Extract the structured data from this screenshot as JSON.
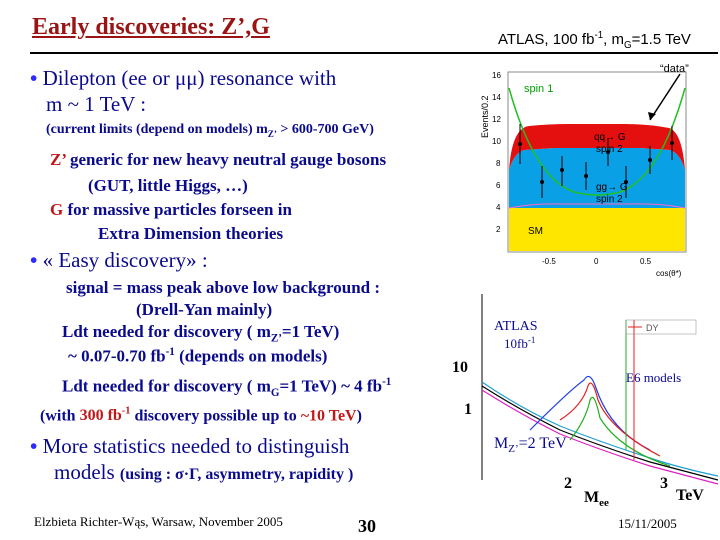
{
  "slide": {
    "title": "Early discoveries: Z’,G",
    "atlas_header": "ATLAS, 100 fb-1, mG=1.5 TeV",
    "bullets": [
      {
        "line1": "Dilepton (ee or μμ) resonance with",
        "line2": "m ~ 1 TeV :"
      },
      {
        "text": "« Easy discovery» :"
      },
      {
        "line1": "More statistics needed to  distinguish",
        "line2": "models (using : σ·Γ, asymmetry, rapidity )"
      }
    ],
    "current_limits": "(current limits (depend on models) mZ’ > 600-700 GeV)",
    "zprime_desc": [
      "Z’ generic for new heavy neutral gauge bosons",
      "(GUT,  little Higgs, …)"
    ],
    "g_desc": [
      "G  for massive particles forseen in",
      "Extra Dimension theories"
    ],
    "signal": [
      "signal = mass peak above low background :",
      "(Drell-Yan mainly)"
    ],
    "ldt_z": [
      "Ldt needed for discovery ( mZ’=1 TeV)",
      "~ 0.07-0.70 fb-1 (depends on models)"
    ],
    "ldt_g": "Ldt needed for discovery ( mG=1 TeV) ~ 4 fb-1",
    "with_300": {
      "prefix": "(with ",
      "highlight": "300 fb-1",
      "mid": " discovery possible up to ",
      "highlight2": "~10 TeV",
      "suffix": ")"
    },
    "footer": {
      "author": "Elzbieta Richter-Wąs, Warsaw, November 2005",
      "page": "30",
      "date": "15/11/2005"
    }
  },
  "top_plot": {
    "ylabel": "Events/0.2",
    "xlabel": "cos(θ*)",
    "yticks": [
      "16",
      "14",
      "12",
      "10",
      "8",
      "6",
      "4",
      "2"
    ],
    "xticks": [
      "-0.5",
      "0",
      "0.5"
    ],
    "labels": {
      "data": "“data”",
      "spin1": "spin 1",
      "qq": "qq→ G spin 2",
      "gg": "gg→ G spin 2",
      "sm": "SM"
    }
  },
  "bottom_plot": {
    "atlas": "ATLAS",
    "lumi": "10fb-1",
    "dy": "DY",
    "e6": "E6 models",
    "ten": "10",
    "one": "1",
    "mz": "MZ’=2 TeV",
    "x2": "2",
    "mee": "Mee",
    "x3": "3",
    "tev": "TeV"
  }
}
